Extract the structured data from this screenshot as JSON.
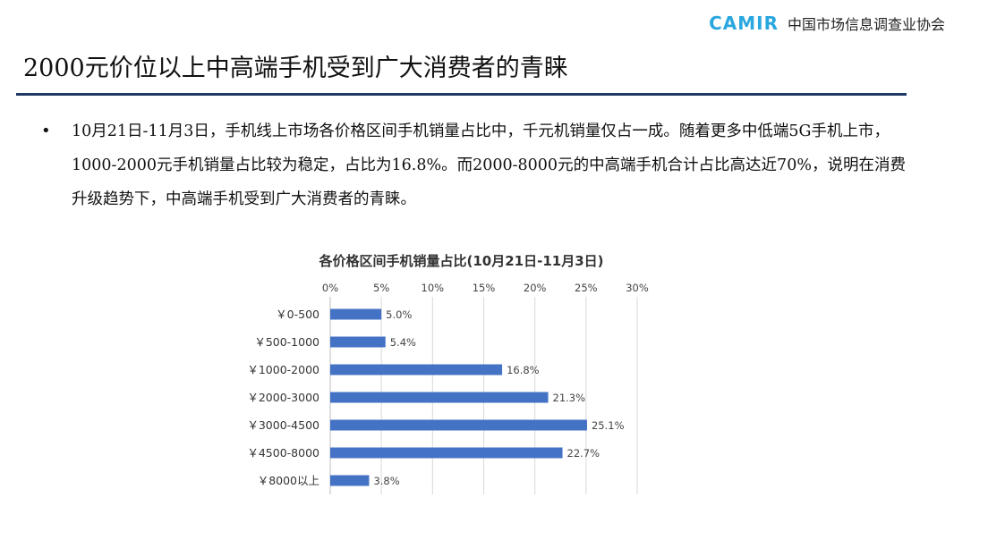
{
  "logo": {
    "mark": "CAMIR",
    "name": "中国市场信息调查业协会"
  },
  "page": {
    "title": "2000元价位以上中高端手机受到广大消费者的青睐",
    "bullet": "10月21日-11月3日，手机线上市场各价格区间手机销量占比中，千元机销量仅占一成。随着更多中低端5G手机上市，1000-2000元手机销量占比较为稳定，占比为16.8%。而2000-8000元的中高端手机合计占比高达近70%，说明在消费升级趋势下，中高端手机受到广大消费者的青睐。"
  },
  "colors": {
    "bar": "#4472c4",
    "rule": "#1f3864",
    "grid": "#d9d9d9",
    "logo": "#2aa7df"
  },
  "chart_data": {
    "type": "bar",
    "orientation": "horizontal",
    "title": "各价格区间手机销量占比(10月21日-11月3日)",
    "categories": [
      "￥0-500",
      "￥500-1000",
      "￥1000-2000",
      "￥2000-3000",
      "￥3000-4500",
      "￥4500-8000",
      "￥8000以上"
    ],
    "values": [
      5.0,
      5.4,
      16.8,
      21.3,
      25.1,
      22.7,
      3.8
    ],
    "value_labels": [
      "5.0%",
      "5.4%",
      "16.8%",
      "21.3%",
      "25.1%",
      "22.7%",
      "3.8%"
    ],
    "xlim": [
      0,
      30
    ],
    "ticks": [
      "0%",
      "5%",
      "10%",
      "15%",
      "20%",
      "25%",
      "30%"
    ],
    "axis_position": "top",
    "grid": true,
    "legend": "none"
  }
}
